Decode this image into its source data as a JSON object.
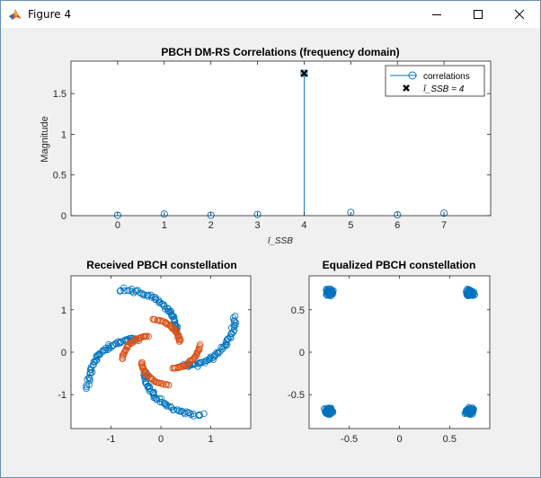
{
  "window": {
    "title": "Figure 4",
    "icon": "matlab-icon",
    "controls": [
      "minimize-icon",
      "maximize-icon",
      "close-icon"
    ]
  },
  "chart_data": [
    {
      "type": "stem",
      "title": "PBCH DM-RS Correlations (frequency domain)",
      "xlabel": "ī_SSB",
      "ylabel": "Magnitude",
      "xlim": [
        -1,
        8
      ],
      "ylim": [
        0,
        1.9
      ],
      "xticks": [
        "0",
        "1",
        "2",
        "3",
        "4",
        "5",
        "6",
        "7"
      ],
      "yticks": [
        "0",
        "0.5",
        "1",
        "1.5"
      ],
      "legend": {
        "placement": "top-right",
        "entries": [
          "correlations",
          "î_SSB = 4"
        ]
      },
      "series": [
        {
          "name": "correlations",
          "x": [
            0,
            1,
            2,
            3,
            4,
            5,
            6,
            7
          ],
          "values": [
            0.005,
            0.02,
            0.005,
            0.015,
            1.75,
            0.04,
            0.01,
            0.03
          ],
          "color": "#0072bd"
        },
        {
          "name": "î_SSB = 4",
          "x": [
            4
          ],
          "values": [
            1.75
          ],
          "color": "#000000"
        }
      ]
    },
    {
      "type": "scatter",
      "title": "Received PBCH constellation",
      "xlim": [
        -1.8,
        1.8
      ],
      "ylim": [
        -1.8,
        1.8
      ],
      "xticks": [
        "-1",
        "0",
        "1"
      ],
      "yticks": [
        "-1",
        "0",
        "1"
      ],
      "series": [
        {
          "pattern": "spiral-arms-received",
          "color": "#0072bd"
        },
        {
          "pattern": "inner-arms-received",
          "color": "#d95319"
        }
      ]
    },
    {
      "type": "scatter",
      "title": "Equalized PBCH constellation",
      "xlim": [
        -0.9,
        0.9
      ],
      "ylim": [
        -0.9,
        0.9
      ],
      "xticks": [
        "-0.5",
        "0",
        "0.5"
      ],
      "yticks": [
        "-0.5",
        "0",
        "0.5"
      ],
      "series": [
        {
          "pattern": "qpsk-clusters",
          "centers": [
            [
              -0.7,
              0.7
            ],
            [
              0.7,
              0.7
            ],
            [
              -0.7,
              -0.7
            ],
            [
              0.7,
              -0.7
            ]
          ],
          "color": "#0072bd"
        }
      ]
    }
  ]
}
